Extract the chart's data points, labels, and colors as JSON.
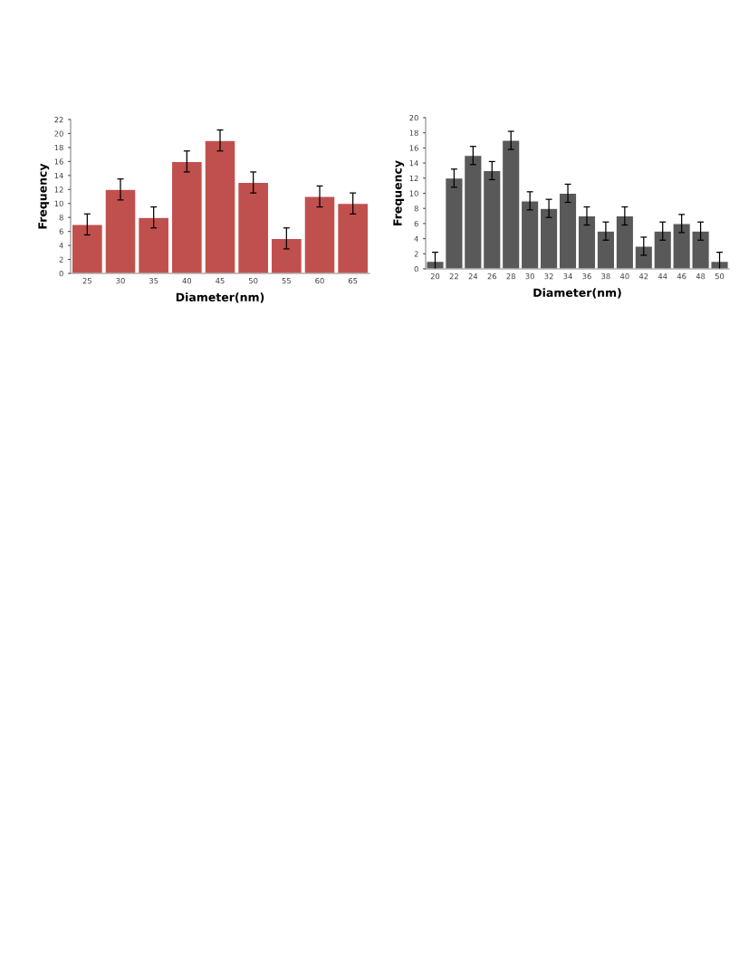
{
  "chart_data": [
    {
      "type": "bar",
      "xlabel": "Diameter(nm)",
      "ylabel": "Frequency",
      "categories": [
        "25",
        "30",
        "35",
        "40",
        "45",
        "50",
        "55",
        "60",
        "65"
      ],
      "values": [
        7,
        12,
        8,
        16,
        19,
        13,
        5,
        11,
        10
      ],
      "errors": [
        1.5,
        1.5,
        1.5,
        1.5,
        1.5,
        1.5,
        1.5,
        1.5,
        1.5
      ],
      "color": "#c0504d",
      "ylim": [
        0,
        22
      ],
      "yticks": [
        0,
        2,
        4,
        6,
        8,
        10,
        12,
        14,
        16,
        18,
        20,
        22
      ],
      "grid": false,
      "legend": false
    },
    {
      "type": "bar",
      "xlabel": "Diameter(nm)",
      "ylabel": "Frequency",
      "categories": [
        "20",
        "22",
        "24",
        "26",
        "28",
        "30",
        "32",
        "34",
        "36",
        "38",
        "40",
        "42",
        "44",
        "46",
        "48",
        "50"
      ],
      "values": [
        1,
        12,
        15,
        13,
        17,
        9,
        8,
        10,
        7,
        5,
        7,
        3,
        5,
        6,
        5,
        1
      ],
      "errors": [
        1.2,
        1.2,
        1.2,
        1.2,
        1.2,
        1.2,
        1.2,
        1.2,
        1.2,
        1.2,
        1.2,
        1.2,
        1.2,
        1.2,
        1.2,
        1.2
      ],
      "color": "#595959",
      "ylim": [
        0,
        20
      ],
      "yticks": [
        0,
        2,
        4,
        6,
        8,
        10,
        12,
        14,
        16,
        18,
        20
      ],
      "grid": false,
      "legend": false
    }
  ]
}
